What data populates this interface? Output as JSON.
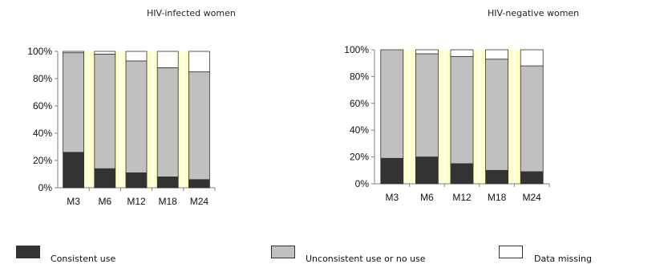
{
  "chart_data": [
    {
      "type": "bar",
      "stacked": true,
      "percent": true,
      "title": "HIV-infected women",
      "categories": [
        "M3",
        "M6",
        "M12",
        "M18",
        "M24"
      ],
      "ylim": [
        0,
        100
      ],
      "yticks": [
        "0%",
        "20%",
        "40%",
        "60%",
        "80%",
        "100%"
      ],
      "series": [
        {
          "name": "Consistent use",
          "color": "#333333",
          "values": [
            26,
            14,
            11,
            8,
            6
          ]
        },
        {
          "name": "Unconsistent use or no use",
          "color": "#c0c0c0",
          "values": [
            73,
            84,
            82,
            80,
            79
          ]
        },
        {
          "name": "Data missing",
          "color": "#ffffff",
          "values": [
            1,
            2,
            7,
            12,
            15
          ]
        }
      ]
    },
    {
      "type": "bar",
      "stacked": true,
      "percent": true,
      "title": "HIV-negative women",
      "categories": [
        "M3",
        "M6",
        "M12",
        "M18",
        "M24"
      ],
      "ylim": [
        0,
        100
      ],
      "yticks": [
        "0%",
        "20%",
        "40%",
        "60%",
        "80%",
        "100%"
      ],
      "series": [
        {
          "name": "Consistent use",
          "color": "#333333",
          "values": [
            19,
            20,
            15,
            10,
            9
          ]
        },
        {
          "name": "Unconsistent use or no use",
          "color": "#c0c0c0",
          "values": [
            81,
            77,
            80,
            83,
            79
          ]
        },
        {
          "name": "Data missing",
          "color": "#ffffff",
          "values": [
            0,
            3,
            5,
            7,
            12
          ]
        }
      ]
    }
  ],
  "legend": [
    {
      "label": "Consistent use",
      "color": "#333333"
    },
    {
      "label": "Unconsistent use or no use",
      "color": "#c0c0c0"
    },
    {
      "label": "Data missing",
      "color": "#ffffff"
    }
  ],
  "colors": {
    "plot_band": "#ffffc8",
    "axis": "#808080",
    "bar_edge": "#333333"
  }
}
